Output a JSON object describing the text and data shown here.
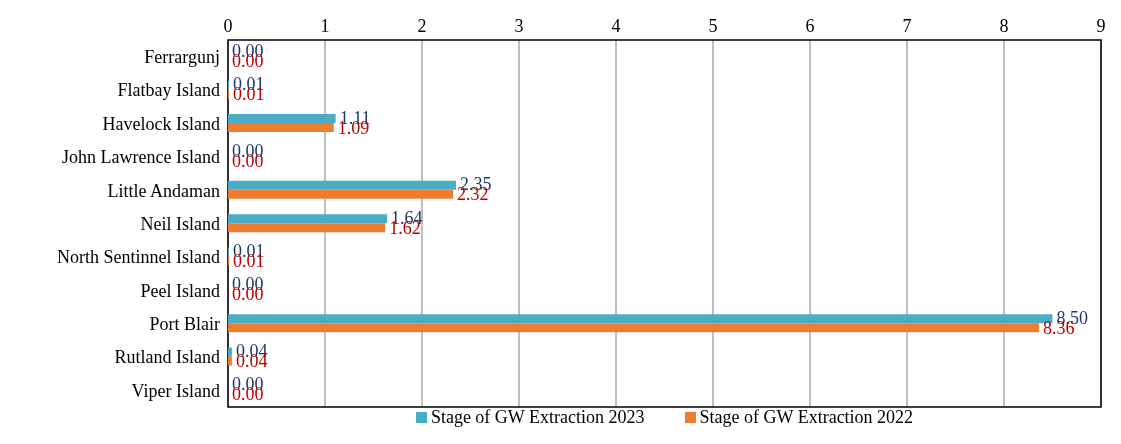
{
  "chart_data": {
    "type": "bar",
    "orientation": "horizontal",
    "categories": [
      "Ferrargunj",
      "Flatbay Island",
      "Havelock Island",
      "John Lawrence Island",
      "Little Andaman",
      "Neil Island",
      "North Sentinnel Island",
      "Peel Island",
      "Port Blair",
      "Rutland Island",
      "Viper Island"
    ],
    "series": [
      {
        "name": "Stage of GW Extraction 2023",
        "color": "#4bacc6",
        "values": [
          0,
          0.01,
          1.11,
          0,
          2.35,
          1.64,
          0.01,
          0,
          8.5,
          0.04,
          0
        ],
        "value_labels": [
          "0.00",
          "0.01",
          "1.11",
          "0.00",
          "2.35",
          "1.64",
          "0.01",
          "0.00",
          "8.50",
          "0.04",
          "0.00"
        ]
      },
      {
        "name": "Stage of GW Extraction 2022",
        "color": "#ed7d31",
        "values": [
          0,
          0.01,
          1.09,
          0,
          2.32,
          1.62,
          0.01,
          0,
          8.36,
          0.04,
          0
        ],
        "value_labels": [
          "0.00",
          "0.01",
          "1.09",
          "0.00",
          "2.32",
          "1.62",
          "0.01",
          "0.00",
          "8.36",
          "0.04",
          "0.00"
        ]
      }
    ],
    "xlim": [
      0,
      9
    ],
    "xticks": [
      0,
      1,
      2,
      3,
      4,
      5,
      6,
      7,
      8,
      9
    ],
    "grid": "x",
    "legend": "bottom"
  }
}
